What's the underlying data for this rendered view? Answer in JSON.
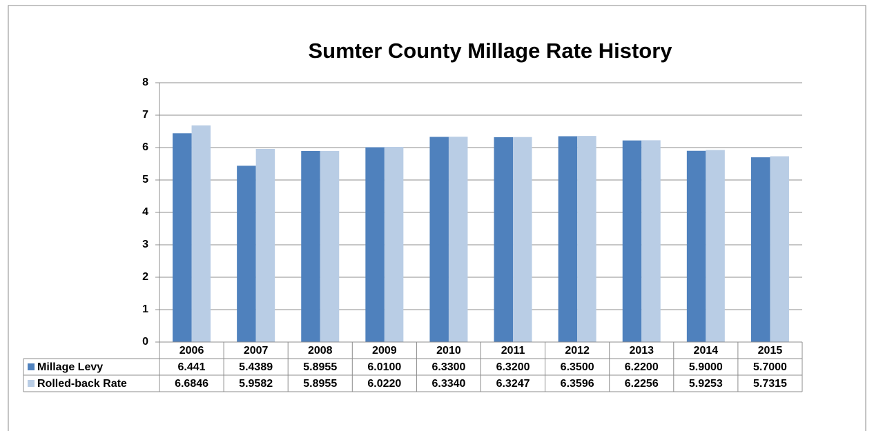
{
  "chart_data": {
    "type": "bar",
    "title": "Sumter County Millage Rate History",
    "categories": [
      "2006",
      "2007",
      "2008",
      "2009",
      "2010",
      "2011",
      "2012",
      "2013",
      "2014",
      "2015"
    ],
    "series": [
      {
        "name": "Millage Levy",
        "color": "#4f81bd",
        "values": [
          6.441,
          5.4389,
          5.8955,
          6.01,
          6.33,
          6.32,
          6.35,
          6.22,
          5.9,
          5.7
        ],
        "value_labels": [
          "6.441",
          "5.4389",
          "5.8955",
          "6.0100",
          "6.3300",
          "6.3200",
          "6.3500",
          "6.2200",
          "5.9000",
          "5.7000"
        ]
      },
      {
        "name": "Rolled-back Rate",
        "color": "#b9cde5",
        "values": [
          6.6846,
          5.9582,
          5.8955,
          6.022,
          6.334,
          6.3247,
          6.3596,
          6.2256,
          5.9253,
          5.7315
        ],
        "value_labels": [
          "6.6846",
          "5.9582",
          "5.8955",
          "6.0220",
          "6.3340",
          "6.3247",
          "6.3596",
          "6.2256",
          "5.9253",
          "5.7315"
        ]
      }
    ],
    "ylim": [
      0,
      8
    ],
    "yticks": [
      0,
      1,
      2,
      3,
      4,
      5,
      6,
      7,
      8
    ],
    "grid": true
  }
}
